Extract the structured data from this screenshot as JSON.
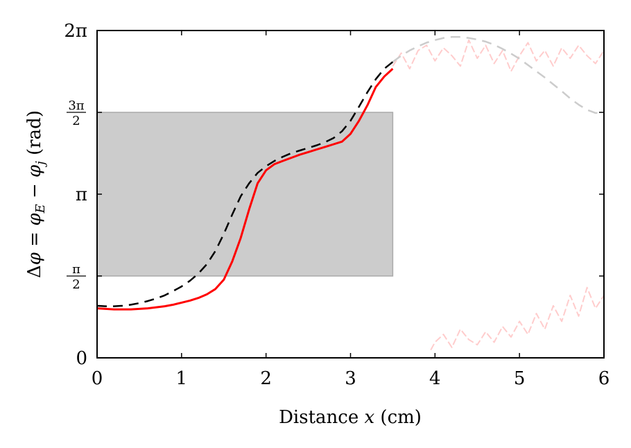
{
  "chart_data": {
    "type": "line",
    "title": "",
    "xlabel": "Distance x (cm)",
    "xlabel_parts": [
      "Distance ",
      "x",
      " (cm)"
    ],
    "ylabel": "Δφ = φE − φj (rad)",
    "ylabel_parts": [
      "Δ",
      "φ",
      " = ",
      "φ",
      "E",
      " − ",
      "φ",
      "j",
      " (rad)"
    ],
    "xlim": [
      0,
      6
    ],
    "ylim": [
      0,
      6.2832
    ],
    "x_ticks": [
      0,
      1,
      2,
      3,
      4,
      5,
      6
    ],
    "x_tick_labels": [
      "0",
      "1",
      "2",
      "3",
      "4",
      "5",
      "6"
    ],
    "y_ticks": [
      {
        "value": 0,
        "label": "0"
      },
      {
        "value": 1.5708,
        "num": "π",
        "den": "2"
      },
      {
        "value": 3.1416,
        "label": "π"
      },
      {
        "value": 4.7124,
        "num": "3π",
        "den": "2"
      },
      {
        "value": 6.2832,
        "label": "2π"
      }
    ],
    "shaded_region": {
      "x": [
        0,
        3.5
      ],
      "y": [
        1.5708,
        4.7124
      ],
      "color": "#cccccc"
    },
    "colors": {
      "measured": "#ff0000",
      "measured_faded": "#ffcccc",
      "model": "#000000",
      "model_faded": "#cccccc"
    },
    "series": [
      {
        "style": "solid",
        "x": [
          0,
          0.1,
          0.2,
          0.3,
          0.4,
          0.5,
          0.6,
          0.7,
          0.8,
          0.9,
          1.0,
          1.1,
          1.2,
          1.3,
          1.4,
          1.5,
          1.6,
          1.7,
          1.8,
          1.9,
          2.0,
          2.1,
          2.2,
          2.3,
          2.4,
          2.5,
          2.6,
          2.7,
          2.8,
          2.9,
          3.0,
          3.1,
          3.2,
          3.3,
          3.4,
          3.5
        ],
        "values": [
          0.95,
          0.94,
          0.93,
          0.93,
          0.93,
          0.94,
          0.95,
          0.97,
          0.99,
          1.02,
          1.06,
          1.1,
          1.15,
          1.22,
          1.32,
          1.5,
          1.85,
          2.3,
          2.85,
          3.35,
          3.6,
          3.72,
          3.78,
          3.84,
          3.9,
          3.95,
          4.0,
          4.05,
          4.1,
          4.15,
          4.3,
          4.55,
          4.85,
          5.2,
          5.4,
          5.55
        ]
      },
      {
        "style": "dashed",
        "x": [
          0,
          0.1,
          0.2,
          0.3,
          0.4,
          0.5,
          0.6,
          0.7,
          0.8,
          0.9,
          1.0,
          1.1,
          1.2,
          1.3,
          1.4,
          1.5,
          1.6,
          1.7,
          1.8,
          1.9,
          2.0,
          2.1,
          2.2,
          2.3,
          2.4,
          2.5,
          2.6,
          2.7,
          2.8,
          2.9,
          3.0,
          3.1,
          3.2,
          3.3,
          3.4,
          3.5
        ],
        "values": [
          1.0,
          0.99,
          0.99,
          1.0,
          1.02,
          1.05,
          1.09,
          1.14,
          1.2,
          1.28,
          1.37,
          1.48,
          1.62,
          1.8,
          2.05,
          2.38,
          2.75,
          3.1,
          3.35,
          3.55,
          3.68,
          3.78,
          3.86,
          3.93,
          3.98,
          4.03,
          4.08,
          4.14,
          4.22,
          4.35,
          4.55,
          4.82,
          5.1,
          5.35,
          5.55,
          5.68
        ]
      },
      {
        "style": "dashed-faded",
        "x": [
          3.5,
          3.6,
          3.7,
          3.8,
          3.9,
          4.0,
          4.1,
          4.2,
          4.3,
          4.4,
          4.5,
          4.6,
          4.7,
          4.8,
          4.9,
          5.0,
          5.1,
          5.2,
          5.3,
          5.4,
          5.5,
          5.6,
          5.7,
          5.8,
          5.9,
          6.0
        ],
        "values": [
          5.68,
          5.8,
          5.9,
          5.98,
          6.05,
          6.1,
          6.14,
          6.16,
          6.16,
          6.14,
          6.11,
          6.07,
          6.01,
          5.93,
          5.84,
          5.74,
          5.62,
          5.5,
          5.38,
          5.25,
          5.12,
          4.98,
          4.86,
          4.76,
          4.7,
          4.7
        ]
      },
      {
        "style": "noisy-faded-upper",
        "x": [
          3.5,
          3.6,
          3.7,
          3.8,
          3.9,
          4.0,
          4.1,
          4.2,
          4.3,
          4.4,
          4.5,
          4.6,
          4.7,
          4.8,
          4.9,
          5.0,
          5.1,
          5.2,
          5.3,
          5.4,
          5.5,
          5.6,
          5.7,
          5.8,
          5.9,
          6.0
        ],
        "values": [
          5.6,
          5.85,
          5.55,
          5.9,
          6.0,
          5.7,
          5.95,
          5.8,
          5.6,
          6.1,
          5.75,
          6.0,
          5.65,
          5.9,
          5.5,
          5.8,
          6.05,
          5.7,
          5.9,
          5.6,
          5.95,
          5.75,
          6.0,
          5.8,
          5.65,
          5.9
        ]
      },
      {
        "style": "noisy-faded-lower",
        "x": [
          3.95,
          4.0,
          4.1,
          4.2,
          4.3,
          4.4,
          4.5,
          4.6,
          4.7,
          4.8,
          4.9,
          5.0,
          5.1,
          5.2,
          5.3,
          5.4,
          5.5,
          5.6,
          5.7,
          5.8,
          5.9,
          6.0
        ],
        "values": [
          0.15,
          0.3,
          0.45,
          0.2,
          0.55,
          0.35,
          0.25,
          0.5,
          0.3,
          0.6,
          0.4,
          0.7,
          0.45,
          0.85,
          0.55,
          1.0,
          0.7,
          1.2,
          0.8,
          1.35,
          0.95,
          1.2
        ]
      }
    ]
  }
}
